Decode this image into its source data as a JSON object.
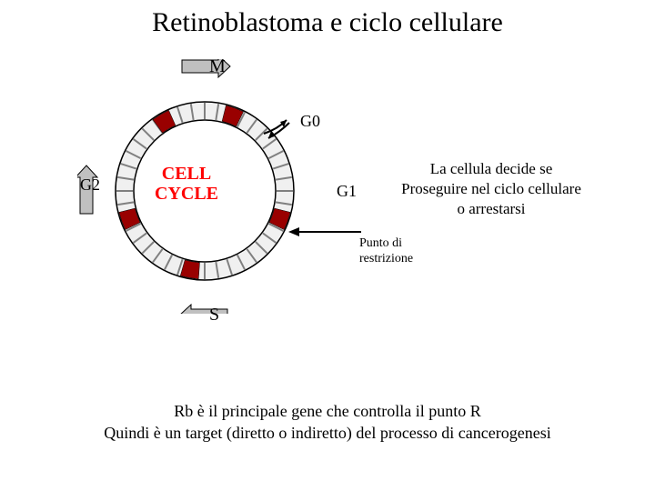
{
  "title": "Retinoblastoma e ciclo cellulare",
  "cell_cycle_center": "CELL\nCYCLE",
  "phases": {
    "m": "M",
    "g0": "G0",
    "g1": "G1",
    "g2": "G2",
    "s": "S"
  },
  "decision": {
    "line1": "La cellula decide se",
    "line2": "Proseguire nel ciclo cellulare",
    "line3": "o arrestarsi"
  },
  "restriction": {
    "line1": "Punto di",
    "line2": "restrizione"
  },
  "bottom": {
    "line1": "Rb è il principale gene che controlla il punto R",
    "line2": "Quindi è un target (diretto o indiretto) del processo di cancerogenesi"
  },
  "colors": {
    "ring_outer": "#000000",
    "ring_fill": "#f0f0f0",
    "ring_inner_bg": "#ffffff",
    "checkpoint": "#990000",
    "arrow_fill": "#c0c0c0",
    "arrow_stroke": "#000000",
    "text_red": "#ff0000",
    "text_black": "#000000"
  },
  "diagram": {
    "outer_radius": 98,
    "inner_radius": 78,
    "tick_count": 40,
    "checkpoints_deg": [
      20,
      110,
      190,
      250,
      330
    ]
  }
}
